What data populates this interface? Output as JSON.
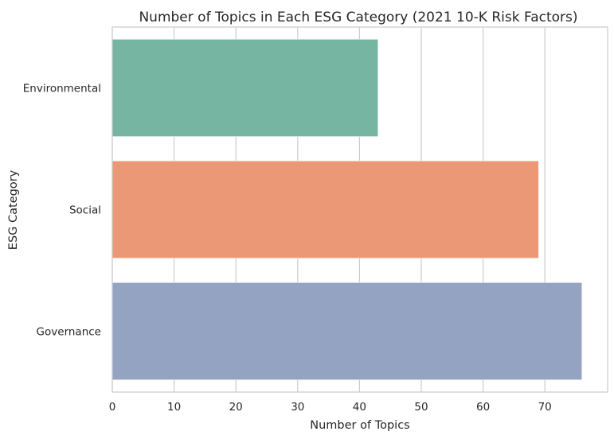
{
  "chart_data": {
    "type": "bar",
    "orientation": "horizontal",
    "title": "Number of Topics in Each ESG Category (2021 10-K Risk Factors)",
    "xlabel": "Number of Topics",
    "ylabel": "ESG Category",
    "categories": [
      "Environmental",
      "Social",
      "Governance"
    ],
    "values": [
      43,
      69,
      76
    ],
    "colors": [
      "#76b5a1",
      "#ea9875",
      "#94a3c2"
    ],
    "xlim": [
      0,
      80
    ],
    "xticks": [
      0,
      10,
      20,
      30,
      40,
      50,
      60,
      70
    ],
    "grid": true,
    "legend": "none"
  }
}
